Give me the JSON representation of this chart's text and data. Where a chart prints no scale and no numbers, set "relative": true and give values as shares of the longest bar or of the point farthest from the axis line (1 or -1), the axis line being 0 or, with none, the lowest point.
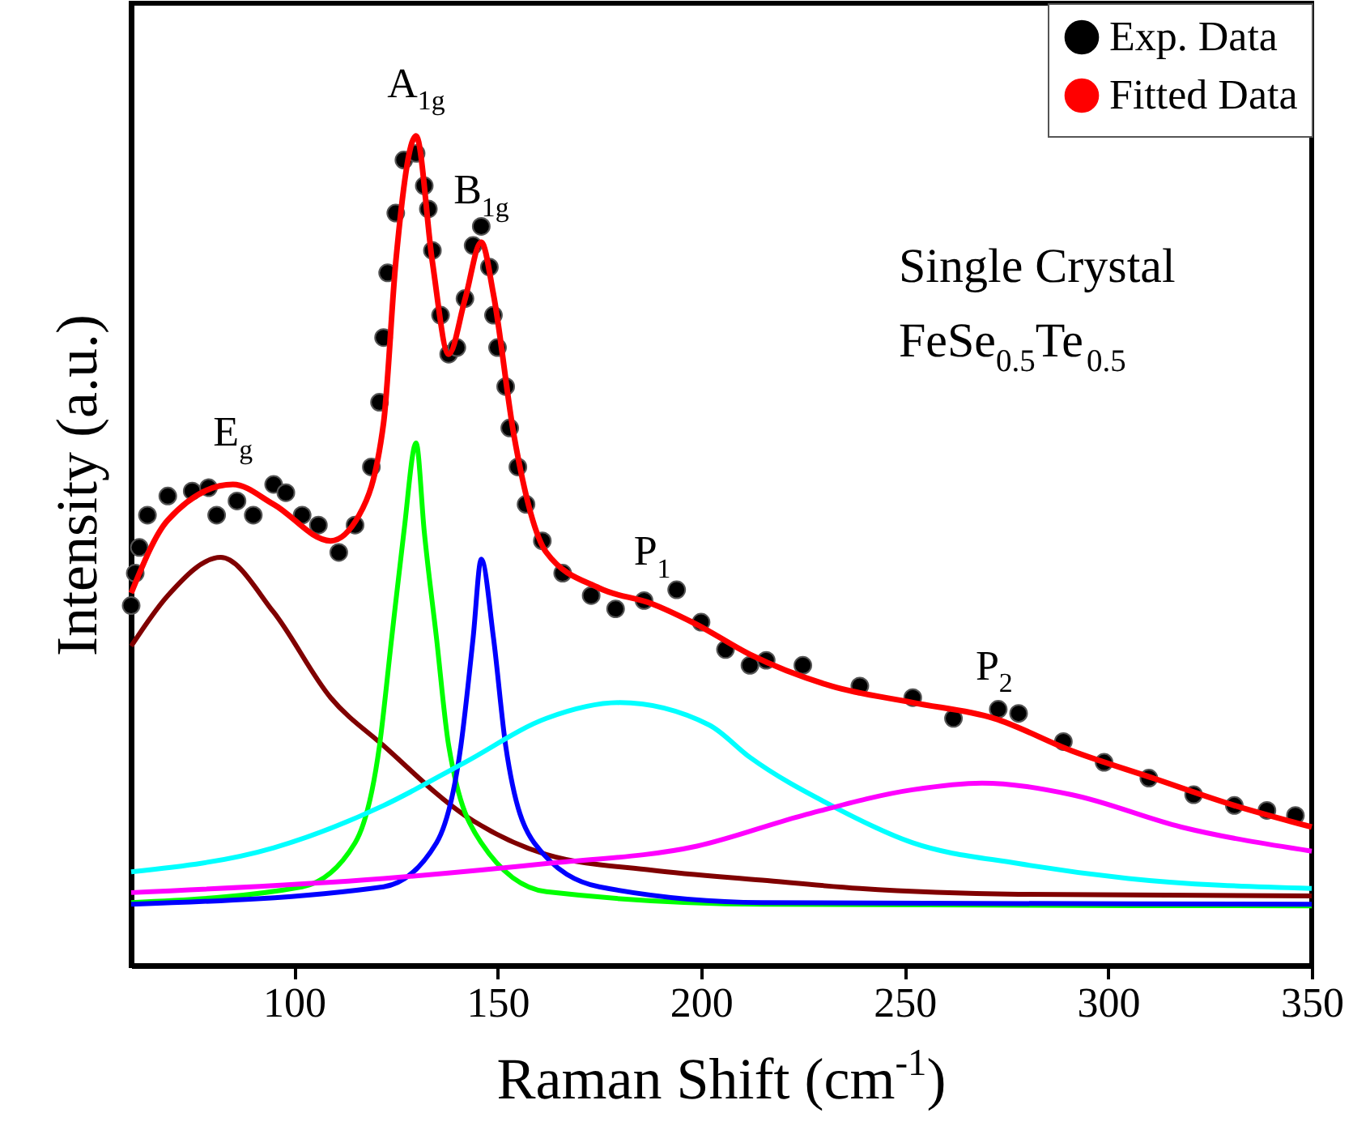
{
  "chart_data": {
    "type": "line",
    "relative": true,
    "xlabel": "Raman Shift (cm$^{-1}$)",
    "ylabel": "Intensity (a.u.)",
    "xlim": [
      60,
      350
    ],
    "xticks": [
      100,
      150,
      200,
      250,
      300,
      350
    ],
    "legend": "top right",
    "grid": false,
    "series": [
      {
        "name": "Exp. Data",
        "type": "scatter",
        "marker": "circle",
        "color": "#000000",
        "x": [
          60,
          61,
          62,
          64,
          69,
          75,
          79,
          81,
          86,
          90,
          95,
          98,
          102,
          106,
          111,
          115,
          119,
          121,
          122,
          123,
          125,
          127,
          130,
          132,
          133,
          134,
          136,
          138,
          140,
          142,
          144,
          146,
          148,
          149,
          150,
          152,
          153,
          155,
          157,
          161,
          166,
          173,
          179,
          186,
          194,
          200,
          206,
          212,
          216,
          225,
          239,
          252,
          262,
          273,
          278,
          289,
          299,
          310,
          321,
          331,
          339,
          346
        ],
        "values": [
          0.434,
          0.473,
          0.504,
          0.543,
          0.566,
          0.572,
          0.576,
          0.543,
          0.56,
          0.543,
          0.58,
          0.57,
          0.543,
          0.531,
          0.498,
          0.531,
          0.601,
          0.679,
          0.757,
          0.835,
          0.907,
          0.971,
          0.979,
          0.94,
          0.912,
          0.862,
          0.784,
          0.737,
          0.745,
          0.804,
          0.868,
          0.891,
          0.842,
          0.784,
          0.745,
          0.698,
          0.648,
          0.601,
          0.556,
          0.512,
          0.473,
          0.446,
          0.43,
          0.44,
          0.453,
          0.414,
          0.381,
          0.362,
          0.368,
          0.362,
          0.337,
          0.323,
          0.298,
          0.309,
          0.304,
          0.27,
          0.245,
          0.226,
          0.206,
          0.193,
          0.187,
          0.181
        ]
      },
      {
        "name": "Fitted Data",
        "color": "#ff0000",
        "x": [
          60,
          69,
          85,
          95,
          109,
          116,
          122,
          125,
          130,
          134,
          138,
          142,
          146,
          149,
          154,
          162,
          175,
          188,
          199,
          212,
          232,
          252,
          272,
          291,
          311,
          331,
          350
        ],
        "values": [
          0.449,
          0.537,
          0.58,
          0.556,
          0.512,
          0.543,
          0.654,
          0.848,
          1.0,
          0.848,
          0.737,
          0.803,
          0.872,
          0.809,
          0.64,
          0.498,
          0.455,
          0.436,
          0.411,
          0.375,
          0.337,
          0.317,
          0.298,
          0.259,
          0.226,
          0.193,
          0.167
        ]
      },
      {
        "color": "#800000",
        "x": [
          60,
          69,
          82,
          95,
          109,
          122,
          142,
          162,
          188,
          215,
          239,
          278,
          350
        ],
        "values": [
          0.385,
          0.446,
          0.492,
          0.426,
          0.323,
          0.265,
          0.181,
          0.134,
          0.115,
          0.103,
          0.093,
          0.086,
          0.084
        ]
      },
      {
        "color": "#00ff00",
        "x": [
          60,
          102,
          115,
          121,
          124,
          127,
          130,
          132,
          135,
          138,
          146,
          162,
          215,
          350
        ],
        "values": [
          0.076,
          0.095,
          0.148,
          0.265,
          0.395,
          0.523,
          0.63,
          0.523,
          0.395,
          0.265,
          0.148,
          0.089,
          0.074,
          0.072
        ]
      },
      {
        "color": "#0000ff",
        "x": [
          60,
          122,
          135,
          141,
          144,
          146,
          149,
          152,
          159,
          175,
          215,
          350
        ],
        "values": [
          0.074,
          0.095,
          0.148,
          0.265,
          0.395,
          0.49,
          0.395,
          0.265,
          0.148,
          0.095,
          0.076,
          0.074
        ]
      },
      {
        "color": "#00ffff",
        "x": [
          60,
          95,
          122,
          142,
          162,
          180,
          202,
          212,
          232,
          252,
          278,
          305,
          350
        ],
        "values": [
          0.113,
          0.142,
          0.193,
          0.245,
          0.298,
          0.317,
          0.29,
          0.251,
          0.193,
          0.148,
          0.123,
          0.105,
          0.093
        ]
      },
      {
        "color": "#ff00ff",
        "x": [
          60,
          122,
          162,
          199,
          225,
          252,
          269,
          291,
          318,
          350
        ],
        "values": [
          0.088,
          0.105,
          0.123,
          0.144,
          0.181,
          0.212,
          0.22,
          0.206,
          0.167,
          0.138
        ]
      }
    ],
    "annotations": [
      {
        "text": "E$_{g}$",
        "x": 85,
        "y": 0.58
      },
      {
        "text": "A$_{1g}$",
        "x": 130,
        "y": 1.0
      },
      {
        "text": "B$_{1g}$",
        "x": 146,
        "y": 0.872
      },
      {
        "text": "P$_{1}$",
        "x": 188,
        "y": 0.436
      },
      {
        "text": "P$_{2}$",
        "x": 272,
        "y": 0.298
      },
      "Single Crystal",
      "FeSe$_{0.5}$Te$_{0.5}$"
    ]
  }
}
